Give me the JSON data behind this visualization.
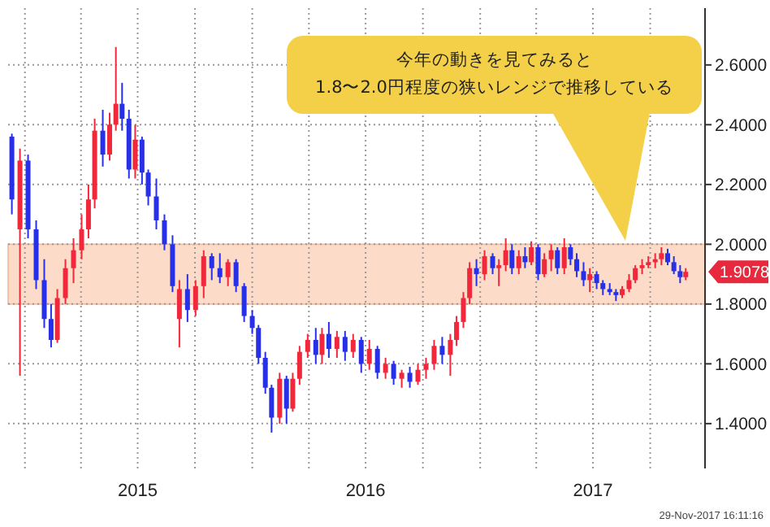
{
  "chart_data": {
    "type": "candlestick",
    "x": [
      "2014-12-11",
      "2014-12-24",
      "2015-01-06",
      "2015-01-19",
      "2015-02-01",
      "2015-02-12",
      "2015-02-22",
      "2015-03-07",
      "2015-03-20",
      "2015-04-02",
      "2015-04-13",
      "2015-04-23",
      "2015-05-06",
      "2015-05-17",
      "2015-05-27",
      "2015-06-06",
      "2015-06-17",
      "2015-06-27",
      "2015-07-08",
      "2015-07-18",
      "2015-07-31",
      "2015-08-13",
      "2015-08-26",
      "2015-09-06",
      "2015-09-19",
      "2015-10-02",
      "2015-10-15",
      "2015-10-28",
      "2015-11-10",
      "2015-11-23",
      "2015-12-06",
      "2015-12-19",
      "2016-01-01",
      "2016-01-11",
      "2016-01-22",
      "2016-02-01",
      "2016-02-14",
      "2016-02-25",
      "2016-03-06",
      "2016-03-17",
      "2016-03-30",
      "2016-04-12",
      "2016-04-22",
      "2016-05-03",
      "2016-05-16",
      "2016-05-29",
      "2016-06-11",
      "2016-06-24",
      "2016-07-07",
      "2016-07-20",
      "2016-08-02",
      "2016-08-15",
      "2016-08-28",
      "2016-09-10",
      "2016-09-23",
      "2016-10-06",
      "2016-10-19",
      "2016-11-01",
      "2016-11-14",
      "2016-11-24",
      "2016-12-05",
      "2016-12-15",
      "2016-12-26",
      "2017-01-08",
      "2017-01-21",
      "2017-01-31",
      "2017-02-11",
      "2017-02-21",
      "2017-03-04",
      "2017-03-14",
      "2017-03-24",
      "2017-04-04",
      "2017-04-14",
      "2017-04-25",
      "2017-05-05",
      "2017-05-16",
      "2017-05-26",
      "2017-06-05",
      "2017-06-16",
      "2017-06-26",
      "2017-07-07",
      "2017-07-17",
      "2017-07-28",
      "2017-08-07",
      "2017-08-17",
      "2017-08-28",
      "2017-09-07",
      "2017-09-18",
      "2017-09-28",
      "2017-10-09",
      "2017-10-19",
      "2017-10-29",
      "2017-11-08",
      "2017-11-18",
      "2017-11-27"
    ],
    "ohlc": [
      [
        2.36,
        2.37,
        2.1,
        2.15
      ],
      [
        2.05,
        2.32,
        1.56,
        2.28
      ],
      [
        2.28,
        2.3,
        2.02,
        2.05
      ],
      [
        2.05,
        2.08,
        1.85,
        1.88
      ],
      [
        1.88,
        1.95,
        1.72,
        1.75
      ],
      [
        1.75,
        1.8,
        1.655,
        1.68
      ],
      [
        1.68,
        1.85,
        1.67,
        1.82
      ],
      [
        1.82,
        1.95,
        1.8,
        1.92
      ],
      [
        1.92,
        2.02,
        1.87,
        1.98
      ],
      [
        1.98,
        2.1,
        1.95,
        2.05
      ],
      [
        2.05,
        2.2,
        2.02,
        2.15
      ],
      [
        2.15,
        2.42,
        2.12,
        2.38
      ],
      [
        2.38,
        2.45,
        2.26,
        2.3
      ],
      [
        2.3,
        2.44,
        2.28,
        2.4
      ],
      [
        2.4,
        2.66,
        2.38,
        2.47
      ],
      [
        2.47,
        2.54,
        2.38,
        2.42
      ],
      [
        2.42,
        2.45,
        2.22,
        2.25
      ],
      [
        2.25,
        2.4,
        2.22,
        2.35
      ],
      [
        2.35,
        2.36,
        2.2,
        2.24
      ],
      [
        2.24,
        2.25,
        2.13,
        2.16
      ],
      [
        2.16,
        2.22,
        2.05,
        2.08
      ],
      [
        2.08,
        2.1,
        1.98,
        2.0
      ],
      [
        2.0,
        2.03,
        1.84,
        1.86
      ],
      [
        1.75,
        1.88,
        1.655,
        1.85
      ],
      [
        1.85,
        1.9,
        1.74,
        1.78
      ],
      [
        1.78,
        1.88,
        1.76,
        1.86
      ],
      [
        1.86,
        1.98,
        1.82,
        1.96
      ],
      [
        1.96,
        1.97,
        1.88,
        1.92
      ],
      [
        1.92,
        1.97,
        1.87,
        1.89
      ],
      [
        1.89,
        1.95,
        1.86,
        1.94
      ],
      [
        1.94,
        1.95,
        1.84,
        1.86
      ],
      [
        1.86,
        1.87,
        1.74,
        1.76
      ],
      [
        1.76,
        1.78,
        1.7,
        1.72
      ],
      [
        1.72,
        1.73,
        1.6,
        1.62
      ],
      [
        1.62,
        1.64,
        1.5,
        1.52
      ],
      [
        1.52,
        1.53,
        1.37,
        1.42
      ],
      [
        1.42,
        1.57,
        1.4,
        1.55
      ],
      [
        1.55,
        1.56,
        1.4,
        1.45
      ],
      [
        1.45,
        1.57,
        1.44,
        1.55
      ],
      [
        1.55,
        1.66,
        1.53,
        1.64
      ],
      [
        1.64,
        1.7,
        1.62,
        1.68
      ],
      [
        1.68,
        1.72,
        1.6,
        1.63
      ],
      [
        1.63,
        1.72,
        1.6,
        1.7
      ],
      [
        1.7,
        1.74,
        1.62,
        1.65
      ],
      [
        1.65,
        1.71,
        1.62,
        1.69
      ],
      [
        1.69,
        1.71,
        1.61,
        1.64
      ],
      [
        1.64,
        1.7,
        1.62,
        1.68
      ],
      [
        1.68,
        1.69,
        1.57,
        1.6
      ],
      [
        1.6,
        1.68,
        1.58,
        1.65
      ],
      [
        1.65,
        1.66,
        1.55,
        1.57
      ],
      [
        1.57,
        1.62,
        1.55,
        1.6
      ],
      [
        1.6,
        1.61,
        1.53,
        1.55
      ],
      [
        1.55,
        1.58,
        1.52,
        1.57
      ],
      [
        1.57,
        1.59,
        1.52,
        1.54
      ],
      [
        1.54,
        1.6,
        1.53,
        1.58
      ],
      [
        1.58,
        1.62,
        1.55,
        1.6
      ],
      [
        1.6,
        1.68,
        1.58,
        1.66
      ],
      [
        1.66,
        1.69,
        1.6,
        1.63
      ],
      [
        1.63,
        1.7,
        1.56,
        1.68
      ],
      [
        1.68,
        1.76,
        1.66,
        1.74
      ],
      [
        1.74,
        1.84,
        1.72,
        1.82
      ],
      [
        1.82,
        1.94,
        1.8,
        1.92
      ],
      [
        1.92,
        1.95,
        1.86,
        1.9
      ],
      [
        1.9,
        1.98,
        1.88,
        1.96
      ],
      [
        1.96,
        1.97,
        1.9,
        1.92
      ],
      [
        1.92,
        1.95,
        1.86,
        1.93
      ],
      [
        1.93,
        2.02,
        1.91,
        1.98
      ],
      [
        1.98,
        2.0,
        1.9,
        1.92
      ],
      [
        1.92,
        1.98,
        1.9,
        1.96
      ],
      [
        1.96,
        1.99,
        1.92,
        1.94
      ],
      [
        1.94,
        2.01,
        1.93,
        1.99
      ],
      [
        1.99,
        2.0,
        1.88,
        1.9
      ],
      [
        1.9,
        1.97,
        1.89,
        1.95
      ],
      [
        1.95,
        2.0,
        1.91,
        1.98
      ],
      [
        1.98,
        1.99,
        1.9,
        1.92
      ],
      [
        1.92,
        2.02,
        1.9,
        1.99
      ],
      [
        1.99,
        2.0,
        1.93,
        1.95
      ],
      [
        1.95,
        1.97,
        1.89,
        1.91
      ],
      [
        1.91,
        1.94,
        1.86,
        1.88
      ],
      [
        1.88,
        1.92,
        1.84,
        1.9
      ],
      [
        1.9,
        1.91,
        1.85,
        1.87
      ],
      [
        1.87,
        1.88,
        1.83,
        1.85
      ],
      [
        1.85,
        1.87,
        1.83,
        1.84
      ],
      [
        1.84,
        1.85,
        1.81,
        1.83
      ],
      [
        1.83,
        1.86,
        1.82,
        1.85
      ],
      [
        1.85,
        1.9,
        1.84,
        1.88
      ],
      [
        1.88,
        1.93,
        1.87,
        1.92
      ],
      [
        1.92,
        1.95,
        1.9,
        1.93
      ],
      [
        1.93,
        1.96,
        1.92,
        1.94
      ],
      [
        1.94,
        1.97,
        1.92,
        1.95
      ],
      [
        1.95,
        1.99,
        1.93,
        1.97
      ],
      [
        1.97,
        1.985,
        1.93,
        1.94
      ],
      [
        1.94,
        1.96,
        1.9,
        1.91
      ],
      [
        1.91,
        1.93,
        1.87,
        1.89
      ],
      [
        1.89,
        1.92,
        1.88,
        1.9078
      ]
    ],
    "colors": [
      "#2830e6",
      "#f0283c",
      "#2830e6",
      "#2830e6",
      "#2830e6",
      "#2830e6",
      "#f0283c",
      "#f0283c",
      "#f0283c",
      "#f0283c",
      "#f0283c",
      "#f0283c",
      "#2830e6",
      "#f0283c",
      "#f0283c",
      "#2830e6",
      "#2830e6",
      "#f0283c",
      "#2830e6",
      "#2830e6",
      "#2830e6",
      "#2830e6",
      "#2830e6",
      "#f0283c",
      "#2830e6",
      "#f0283c",
      "#f0283c",
      "#2830e6",
      "#2830e6",
      "#f0283c",
      "#2830e6",
      "#2830e6",
      "#2830e6",
      "#2830e6",
      "#2830e6",
      "#2830e6",
      "#f0283c",
      "#2830e6",
      "#f0283c",
      "#f0283c",
      "#f0283c",
      "#2830e6",
      "#f0283c",
      "#2830e6",
      "#f0283c",
      "#2830e6",
      "#f0283c",
      "#2830e6",
      "#f0283c",
      "#2830e6",
      "#f0283c",
      "#2830e6",
      "#f0283c",
      "#2830e6",
      "#f0283c",
      "#f0283c",
      "#f0283c",
      "#2830e6",
      "#f0283c",
      "#f0283c",
      "#f0283c",
      "#f0283c",
      "#2830e6",
      "#f0283c",
      "#2830e6",
      "#f0283c",
      "#f0283c",
      "#2830e6",
      "#f0283c",
      "#2830e6",
      "#f0283c",
      "#2830e6",
      "#f0283c",
      "#f0283c",
      "#2830e6",
      "#f0283c",
      "#2830e6",
      "#2830e6",
      "#2830e6",
      "#f0283c",
      "#2830e6",
      "#2830e6",
      "#2830e6",
      "#2830e6",
      "#f0283c",
      "#f0283c",
      "#f0283c",
      "#f0283c",
      "#f0283c",
      "#f0283c",
      "#f0283c",
      "#2830e6",
      "#2830e6",
      "#2830e6",
      "#f0283c"
    ],
    "xlim": [
      "2014-12-05",
      "2017-12-28"
    ],
    "xticks": [
      {
        "value": "2015-01-01",
        "label": null
      },
      {
        "value": "2015-04-01",
        "label": null
      },
      {
        "value": "2015-07-01",
        "label": "2015"
      },
      {
        "value": "2015-10-01",
        "label": null
      },
      {
        "value": "2016-01-01",
        "label": null
      },
      {
        "value": "2016-04-01",
        "label": null
      },
      {
        "value": "2016-07-01",
        "label": "2016"
      },
      {
        "value": "2016-10-01",
        "label": null
      },
      {
        "value": "2017-01-01",
        "label": null
      },
      {
        "value": "2017-04-01",
        "label": null
      },
      {
        "value": "2017-07-01",
        "label": "2017"
      },
      {
        "value": "2017-10-01",
        "label": null
      }
    ],
    "ylim": [
      1.25,
      2.79
    ],
    "yticks": [
      {
        "value": 1.4,
        "label": "1.4000"
      },
      {
        "value": 1.6,
        "label": "1.6000"
      },
      {
        "value": 1.8,
        "label": "1.8000"
      },
      {
        "value": 2.0,
        "label": "2.0000"
      },
      {
        "value": 2.2,
        "label": "2.2000"
      },
      {
        "value": 2.4,
        "label": "2.4000"
      },
      {
        "value": 2.6,
        "label": "2.6000"
      }
    ],
    "grid": true,
    "bands": [
      {
        "axis": "y",
        "from": 1.8,
        "to": 2.0,
        "color": "#fcdcc8"
      }
    ],
    "annotations": [
      "今年の動きを見てみると\n1.8〜2.0円程度の狭いレンジで推移している",
      {
        "text": "1.9078",
        "x": "2017-12-28",
        "y": 1.9078
      },
      "29-Nov-2017 16:11:16"
    ]
  }
}
